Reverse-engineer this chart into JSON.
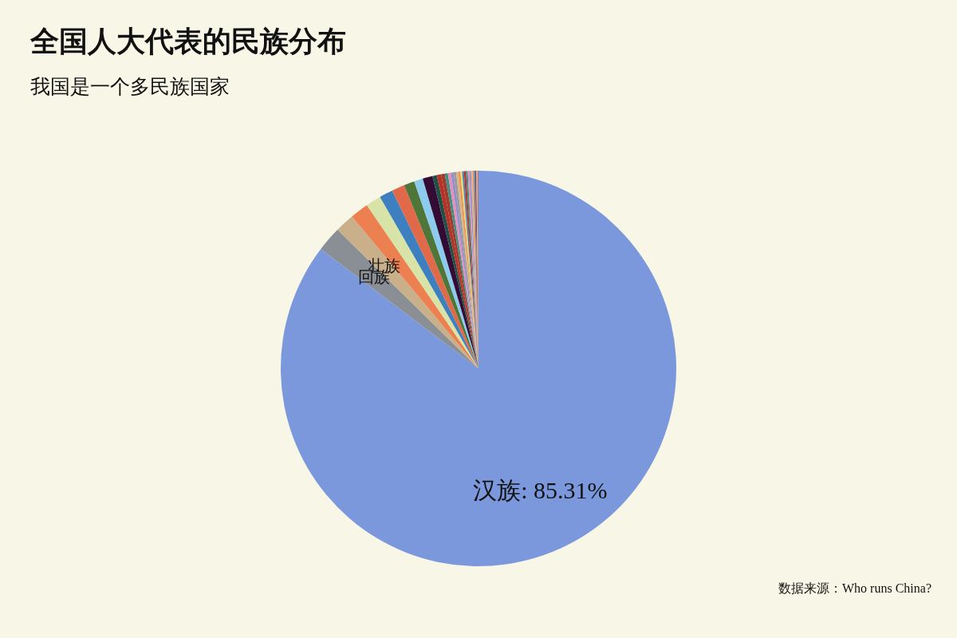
{
  "chart_data": {
    "type": "pie",
    "title": "全国人大代表的民族分布",
    "subtitle": "我国是一个多民族国家",
    "annotations": [
      "数据来源：Who runs China?"
    ],
    "legend": false,
    "categories": [
      "汉族",
      "回族",
      "壮族",
      null,
      null,
      null,
      null,
      null,
      null,
      null,
      null,
      null,
      null,
      null,
      null,
      null,
      null,
      null,
      null,
      null,
      null,
      null,
      null,
      null,
      null,
      null,
      null,
      null,
      null,
      null,
      null
    ],
    "values": [
      85.31,
      2.06,
      1.58,
      1.5,
      1.25,
      1.11,
      1.06,
      0.86,
      0.72,
      0.81,
      0.36,
      0.35,
      0.3,
      0.25,
      0.25,
      0.22,
      0.2,
      0.18,
      0.16,
      0.15,
      0.14,
      0.16,
      0.15,
      0.14,
      0.13,
      0.12,
      0.11,
      0.1,
      0.1,
      0.09,
      0.08
    ],
    "value_labels": [
      "85.31%",
      null,
      null,
      null,
      null,
      null,
      null,
      null,
      null,
      null,
      null,
      null,
      null,
      null,
      null,
      null,
      null,
      null,
      null,
      null,
      null,
      null,
      null,
      null,
      null,
      null,
      null,
      null,
      null,
      null,
      null
    ],
    "colors": [
      "#7a98db",
      "#8a8f96",
      "#c9b08a",
      "#ec8050",
      "#d8e3a8",
      "#3d7fbf",
      "#e0694a",
      "#4d7638",
      "#8ccbee",
      "#330b34",
      "#1f4f45",
      "#b63227",
      "#9e3a2e",
      "#3f8f80",
      "#e58fb8",
      "#8f8fd0",
      "#9a9a9a",
      "#d7b48c",
      "#f09050",
      "#e8d870",
      "#4a80c0",
      "#b63227",
      "#3f8f80",
      "#e58fb8",
      "#8f8fd0",
      "#d7b48c",
      "#f09050",
      "#4a80c0",
      "#9e3a2e",
      "#8ccbee",
      "#e0694a"
    ]
  }
}
